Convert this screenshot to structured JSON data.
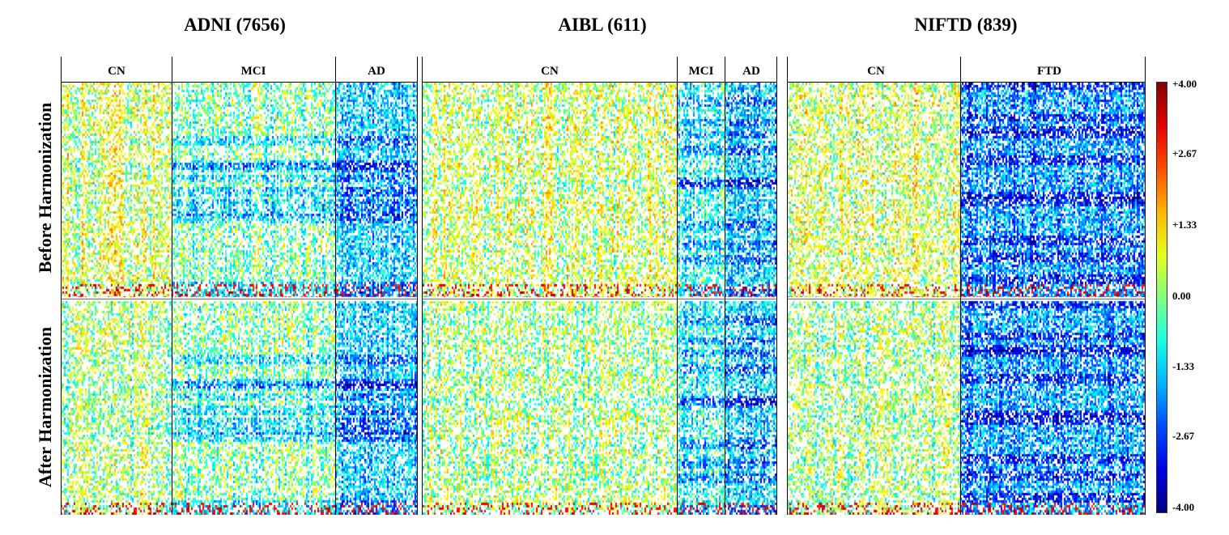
{
  "chart_data": {
    "type": "heatmap",
    "cohorts": [
      {
        "title": "ADNI (7656)",
        "groups": [
          {
            "label": "CN",
            "pattern": "mild-positive"
          },
          {
            "label": "MCI",
            "pattern": "mixed"
          },
          {
            "label": "AD",
            "pattern": "negative"
          }
        ]
      },
      {
        "title": "AIBL (611)",
        "groups": [
          {
            "label": "CN",
            "pattern": "mild-positive"
          },
          {
            "label": "MCI",
            "pattern": "mild-negative"
          },
          {
            "label": "AD",
            "pattern": "negative"
          }
        ]
      },
      {
        "title": "NIFTD (839)",
        "groups": [
          {
            "label": "CN",
            "pattern": "mild-positive"
          },
          {
            "label": "FTD",
            "pattern": "strong-negative"
          }
        ]
      }
    ],
    "rows": [
      "Before Harmonization",
      "After Harmonization"
    ],
    "colorbar": {
      "min": -4.0,
      "max": 4.0,
      "ticks": [
        "+4.00",
        "+2.67",
        "+1.33",
        "0.00",
        "-1.33",
        "-2.67",
        "-4.00"
      ],
      "colormap": "jet"
    }
  }
}
